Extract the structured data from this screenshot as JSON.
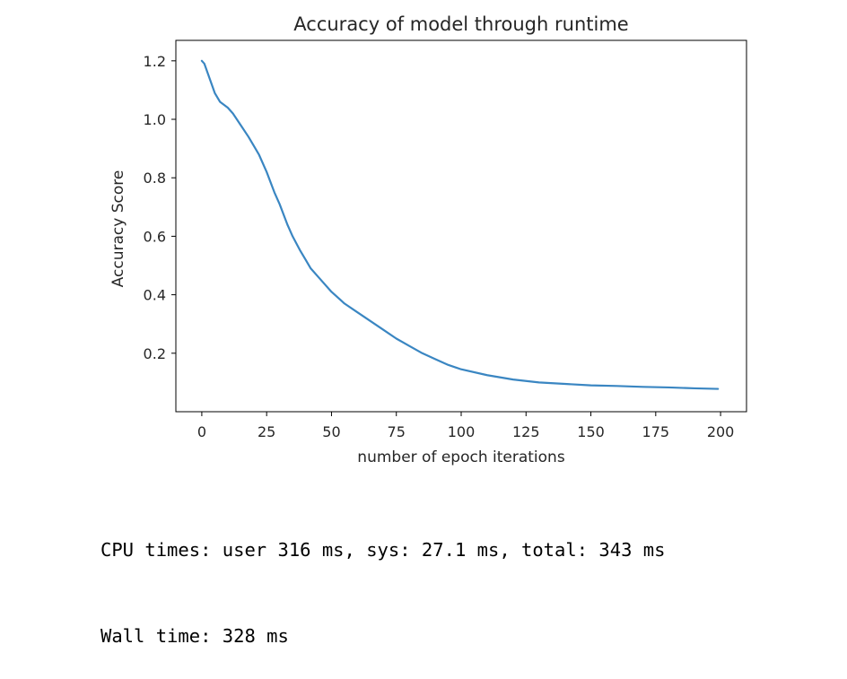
{
  "chart_data": {
    "type": "line",
    "title": "Accuracy of model through runtime",
    "xlabel": "number of epoch iterations",
    "ylabel": "Accuracy Score",
    "xlim": [
      -10,
      210
    ],
    "ylim": [
      0.0,
      1.27
    ],
    "x_ticks": [
      0,
      25,
      50,
      75,
      100,
      125,
      150,
      175,
      200
    ],
    "y_ticks": [
      0.2,
      0.4,
      0.6,
      0.8,
      1.0,
      1.2
    ],
    "y_tick_labels": [
      "0.2",
      "0.4",
      "0.6",
      "0.8",
      "1.0",
      "1.2"
    ],
    "grid": false,
    "line_color": "#3a86c2",
    "series": [
      {
        "x": [
          0,
          1,
          3,
          5,
          7,
          10,
          12,
          15,
          18,
          20,
          22,
          25,
          28,
          30,
          33,
          35,
          38,
          40,
          42,
          45,
          50,
          55,
          60,
          65,
          70,
          75,
          80,
          85,
          90,
          95,
          100,
          110,
          120,
          130,
          140,
          150,
          160,
          170,
          180,
          190,
          199
        ],
        "values": [
          1.2,
          1.19,
          1.14,
          1.09,
          1.06,
          1.04,
          1.02,
          0.98,
          0.94,
          0.91,
          0.88,
          0.82,
          0.75,
          0.71,
          0.64,
          0.6,
          0.55,
          0.52,
          0.49,
          0.46,
          0.41,
          0.37,
          0.34,
          0.31,
          0.28,
          0.25,
          0.225,
          0.2,
          0.18,
          0.16,
          0.145,
          0.125,
          0.11,
          0.1,
          0.095,
          0.09,
          0.088,
          0.085,
          0.083,
          0.08,
          0.078
        ]
      }
    ]
  },
  "output": {
    "cpu_times": "CPU times: user 316 ms, sys: 27.1 ms, total: 343 ms",
    "wall_time": "Wall time: 328 ms"
  }
}
